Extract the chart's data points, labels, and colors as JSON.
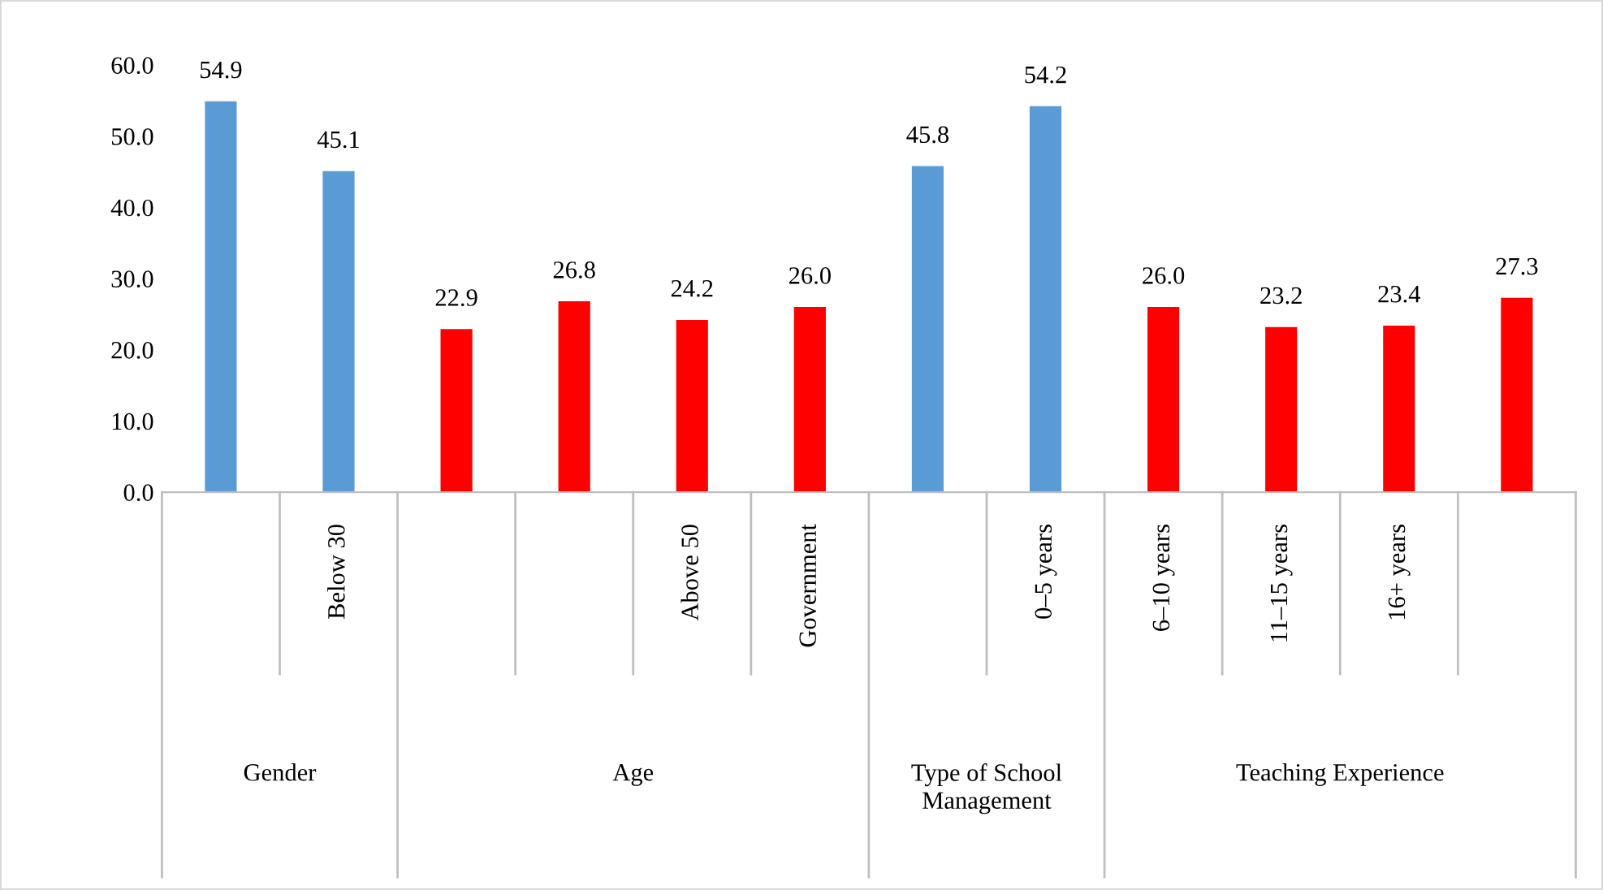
{
  "chart_data": {
    "type": "bar",
    "categories": [
      null,
      "Below 30",
      null,
      null,
      "Above 50",
      "Government",
      null,
      "0–5 years",
      "6–10 years",
      "11–15 years",
      "16+ years",
      null
    ],
    "values": [
      54.9,
      45.1,
      22.9,
      26.8,
      24.2,
      26.0,
      45.8,
      54.2,
      26.0,
      23.2,
      23.4,
      27.3
    ],
    "colors": [
      "#5b9bd5",
      "#5b9bd5",
      "#ff0000",
      "#ff0000",
      "#ff0000",
      "#ff0000",
      "#5b9bd5",
      "#5b9bd5",
      "#ff0000",
      "#ff0000",
      "#ff0000",
      "#ff0000"
    ],
    "annotations": [
      "Gender",
      "Age",
      "Type of School Management",
      "Teaching Experience"
    ],
    "ylim": [
      0,
      60
    ],
    "yticks": [
      {
        "value": 0,
        "label": "0.0"
      },
      {
        "value": 10,
        "label": "10.0"
      },
      {
        "value": 20,
        "label": "20.0"
      },
      {
        "value": 30,
        "label": "30.0"
      },
      {
        "value": 40,
        "label": "40.0"
      },
      {
        "value": 50,
        "label": "50.0"
      },
      {
        "value": 60,
        "label": "60.0"
      }
    ],
    "value_labels": [
      "54.9",
      "45.1",
      "22.9",
      "26.8",
      "24.2",
      "26.0",
      "45.8",
      "54.2",
      "26.0",
      "23.2",
      "23.4",
      "27.3"
    ],
    "grid": false
  }
}
